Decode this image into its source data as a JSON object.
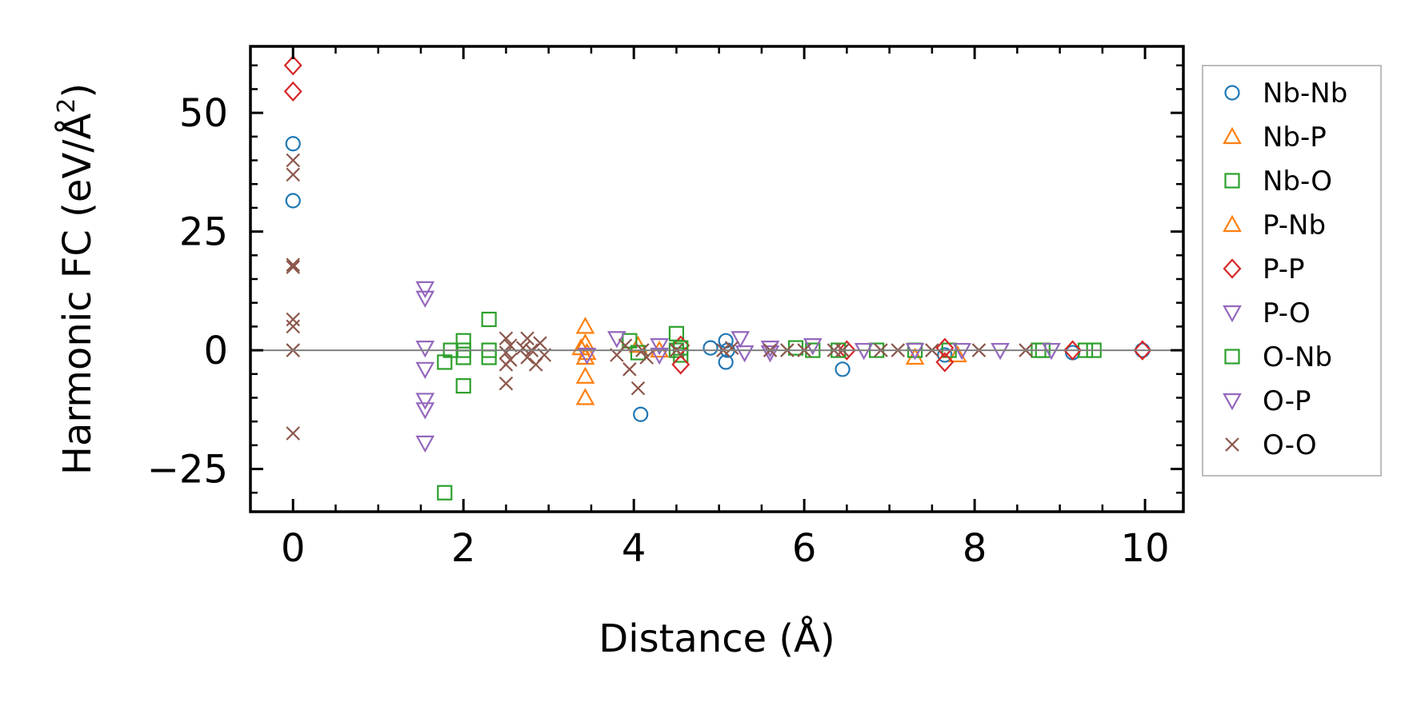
{
  "chart_data": {
    "type": "scatter",
    "xlabel": "Distance (Å)",
    "ylabel_main": "Harmonic FC (eV/Å",
    "ylabel_sup": "2",
    "ylabel_close": ")",
    "xlim": [
      -0.5,
      10.45
    ],
    "ylim": [
      -34,
      64
    ],
    "x_ticks": [
      0,
      2,
      4,
      6,
      8,
      10
    ],
    "x_tick_labels": [
      "0",
      "2",
      "4",
      "6",
      "8",
      "10"
    ],
    "y_ticks": [
      -25,
      0,
      25,
      50
    ],
    "y_tick_labels": [
      "−25",
      "0",
      "25",
      "50"
    ],
    "zero_line": true,
    "grid": false,
    "legend_position": "outside-right",
    "series": [
      {
        "name": "Nb-Nb",
        "marker": "circle",
        "color": "#1f77b4",
        "points": [
          [
            0,
            43.5
          ],
          [
            0,
            31.5
          ],
          [
            4.08,
            -13.5
          ],
          [
            4.9,
            0.5
          ],
          [
            5.08,
            2
          ],
          [
            5.08,
            -2.5
          ],
          [
            5.1,
            0
          ],
          [
            6.45,
            -4
          ],
          [
            7.65,
            -1
          ],
          [
            9.15,
            -0.5
          ],
          [
            9.97,
            0
          ]
        ]
      },
      {
        "name": "Nb-P",
        "marker": "triangle-up",
        "color": "#ff7f0e",
        "points": [
          [
            3.43,
            5
          ],
          [
            3.43,
            1.5
          ],
          [
            3.43,
            -1.5
          ],
          [
            3.43,
            -5.5
          ],
          [
            3.43,
            -10
          ],
          [
            4.05,
            1
          ],
          [
            4.3,
            0
          ],
          [
            7.3,
            -1.5
          ],
          [
            7.8,
            -1
          ]
        ]
      },
      {
        "name": "Nb-O",
        "marker": "square",
        "color": "#2ca02c",
        "points": [
          [
            1.78,
            -30
          ],
          [
            1.78,
            -2.5
          ],
          [
            1.85,
            0
          ],
          [
            2,
            2
          ],
          [
            2.0,
            0
          ],
          [
            2.0,
            -1.5
          ],
          [
            2.0,
            -7.5
          ],
          [
            2.3,
            6.5
          ],
          [
            2.3,
            -1.5
          ],
          [
            2.3,
            0
          ],
          [
            3.95,
            2
          ],
          [
            4.05,
            -0.5
          ],
          [
            4.5,
            3.5
          ],
          [
            4.5,
            0
          ],
          [
            4.55,
            -1
          ],
          [
            5.9,
            0.5
          ],
          [
            6.1,
            0
          ],
          [
            6.85,
            0
          ],
          [
            7.7,
            0
          ],
          [
            8.75,
            0
          ],
          [
            9.3,
            0
          ],
          [
            9.4,
            0
          ]
        ]
      },
      {
        "name": "P-Nb",
        "marker": "triangle-up",
        "color": "#ff7f0e",
        "points": [
          [
            3.38,
            0.5
          ],
          [
            3.45,
            -0.5
          ]
        ]
      },
      {
        "name": "P-P",
        "marker": "diamond",
        "color": "#d62728",
        "points": [
          [
            0,
            60
          ],
          [
            0,
            54.5
          ],
          [
            4.55,
            -3
          ],
          [
            4.55,
            1
          ],
          [
            6.5,
            0
          ],
          [
            7.65,
            -2.5
          ],
          [
            7.65,
            0.5
          ],
          [
            9.15,
            0
          ],
          [
            9.97,
            0
          ]
        ]
      },
      {
        "name": "P-O",
        "marker": "triangle-down",
        "color": "#9467bd",
        "points": [
          [
            1.55,
            13
          ],
          [
            1.55,
            11
          ],
          [
            1.55,
            0.5
          ],
          [
            1.55,
            -4
          ],
          [
            1.55,
            -10.5
          ],
          [
            1.55,
            -12.5
          ],
          [
            1.55,
            -19.5
          ],
          [
            3.8,
            2.5
          ],
          [
            4.3,
            1
          ],
          [
            5.25,
            2.5
          ],
          [
            5.6,
            0.5
          ],
          [
            6.1,
            1
          ]
        ]
      },
      {
        "name": "O-Nb",
        "marker": "square",
        "color": "#2ca02c",
        "points": [
          [
            4.55,
            0.5
          ],
          [
            6.4,
            0
          ],
          [
            7.3,
            0
          ],
          [
            8.8,
            0
          ]
        ]
      },
      {
        "name": "O-P",
        "marker": "triangle-down",
        "color": "#9467bd",
        "points": [
          [
            3.45,
            -1
          ],
          [
            4.3,
            -1
          ],
          [
            5.3,
            -0.5
          ],
          [
            5.6,
            -0.5
          ],
          [
            6.7,
            0
          ],
          [
            7.3,
            0
          ],
          [
            7.85,
            0
          ],
          [
            8.3,
            0
          ],
          [
            8.9,
            0
          ]
        ]
      },
      {
        "name": "O-O",
        "marker": "x",
        "color": "#8c564b",
        "points": [
          [
            0,
            40
          ],
          [
            0,
            37
          ],
          [
            0,
            18
          ],
          [
            0,
            17.5
          ],
          [
            0,
            6.5
          ],
          [
            0,
            5
          ],
          [
            0,
            0
          ],
          [
            0,
            -17.5
          ],
          [
            2.5,
            2.5
          ],
          [
            2.5,
            -0.5
          ],
          [
            2.5,
            -3
          ],
          [
            2.5,
            -7
          ],
          [
            2.55,
            1
          ],
          [
            2.55,
            -2
          ],
          [
            2.7,
            0.5
          ],
          [
            2.75,
            2.5
          ],
          [
            2.75,
            -1.5
          ],
          [
            2.8,
            0
          ],
          [
            2.85,
            -3
          ],
          [
            2.9,
            1.5
          ],
          [
            2.95,
            -1
          ],
          [
            3.8,
            -1
          ],
          [
            3.9,
            1
          ],
          [
            3.95,
            -4
          ],
          [
            4.05,
            -8
          ],
          [
            4.1,
            0
          ],
          [
            4.15,
            -1.5
          ],
          [
            4.5,
            0
          ],
          [
            5.05,
            0
          ],
          [
            5.15,
            0.5
          ],
          [
            5.6,
            0
          ],
          [
            5.8,
            0
          ],
          [
            6.0,
            0
          ],
          [
            6.35,
            0
          ],
          [
            6.45,
            0
          ],
          [
            6.9,
            0
          ],
          [
            7.1,
            0
          ],
          [
            7.5,
            0
          ],
          [
            8.05,
            0
          ],
          [
            8.6,
            0
          ]
        ]
      }
    ]
  }
}
